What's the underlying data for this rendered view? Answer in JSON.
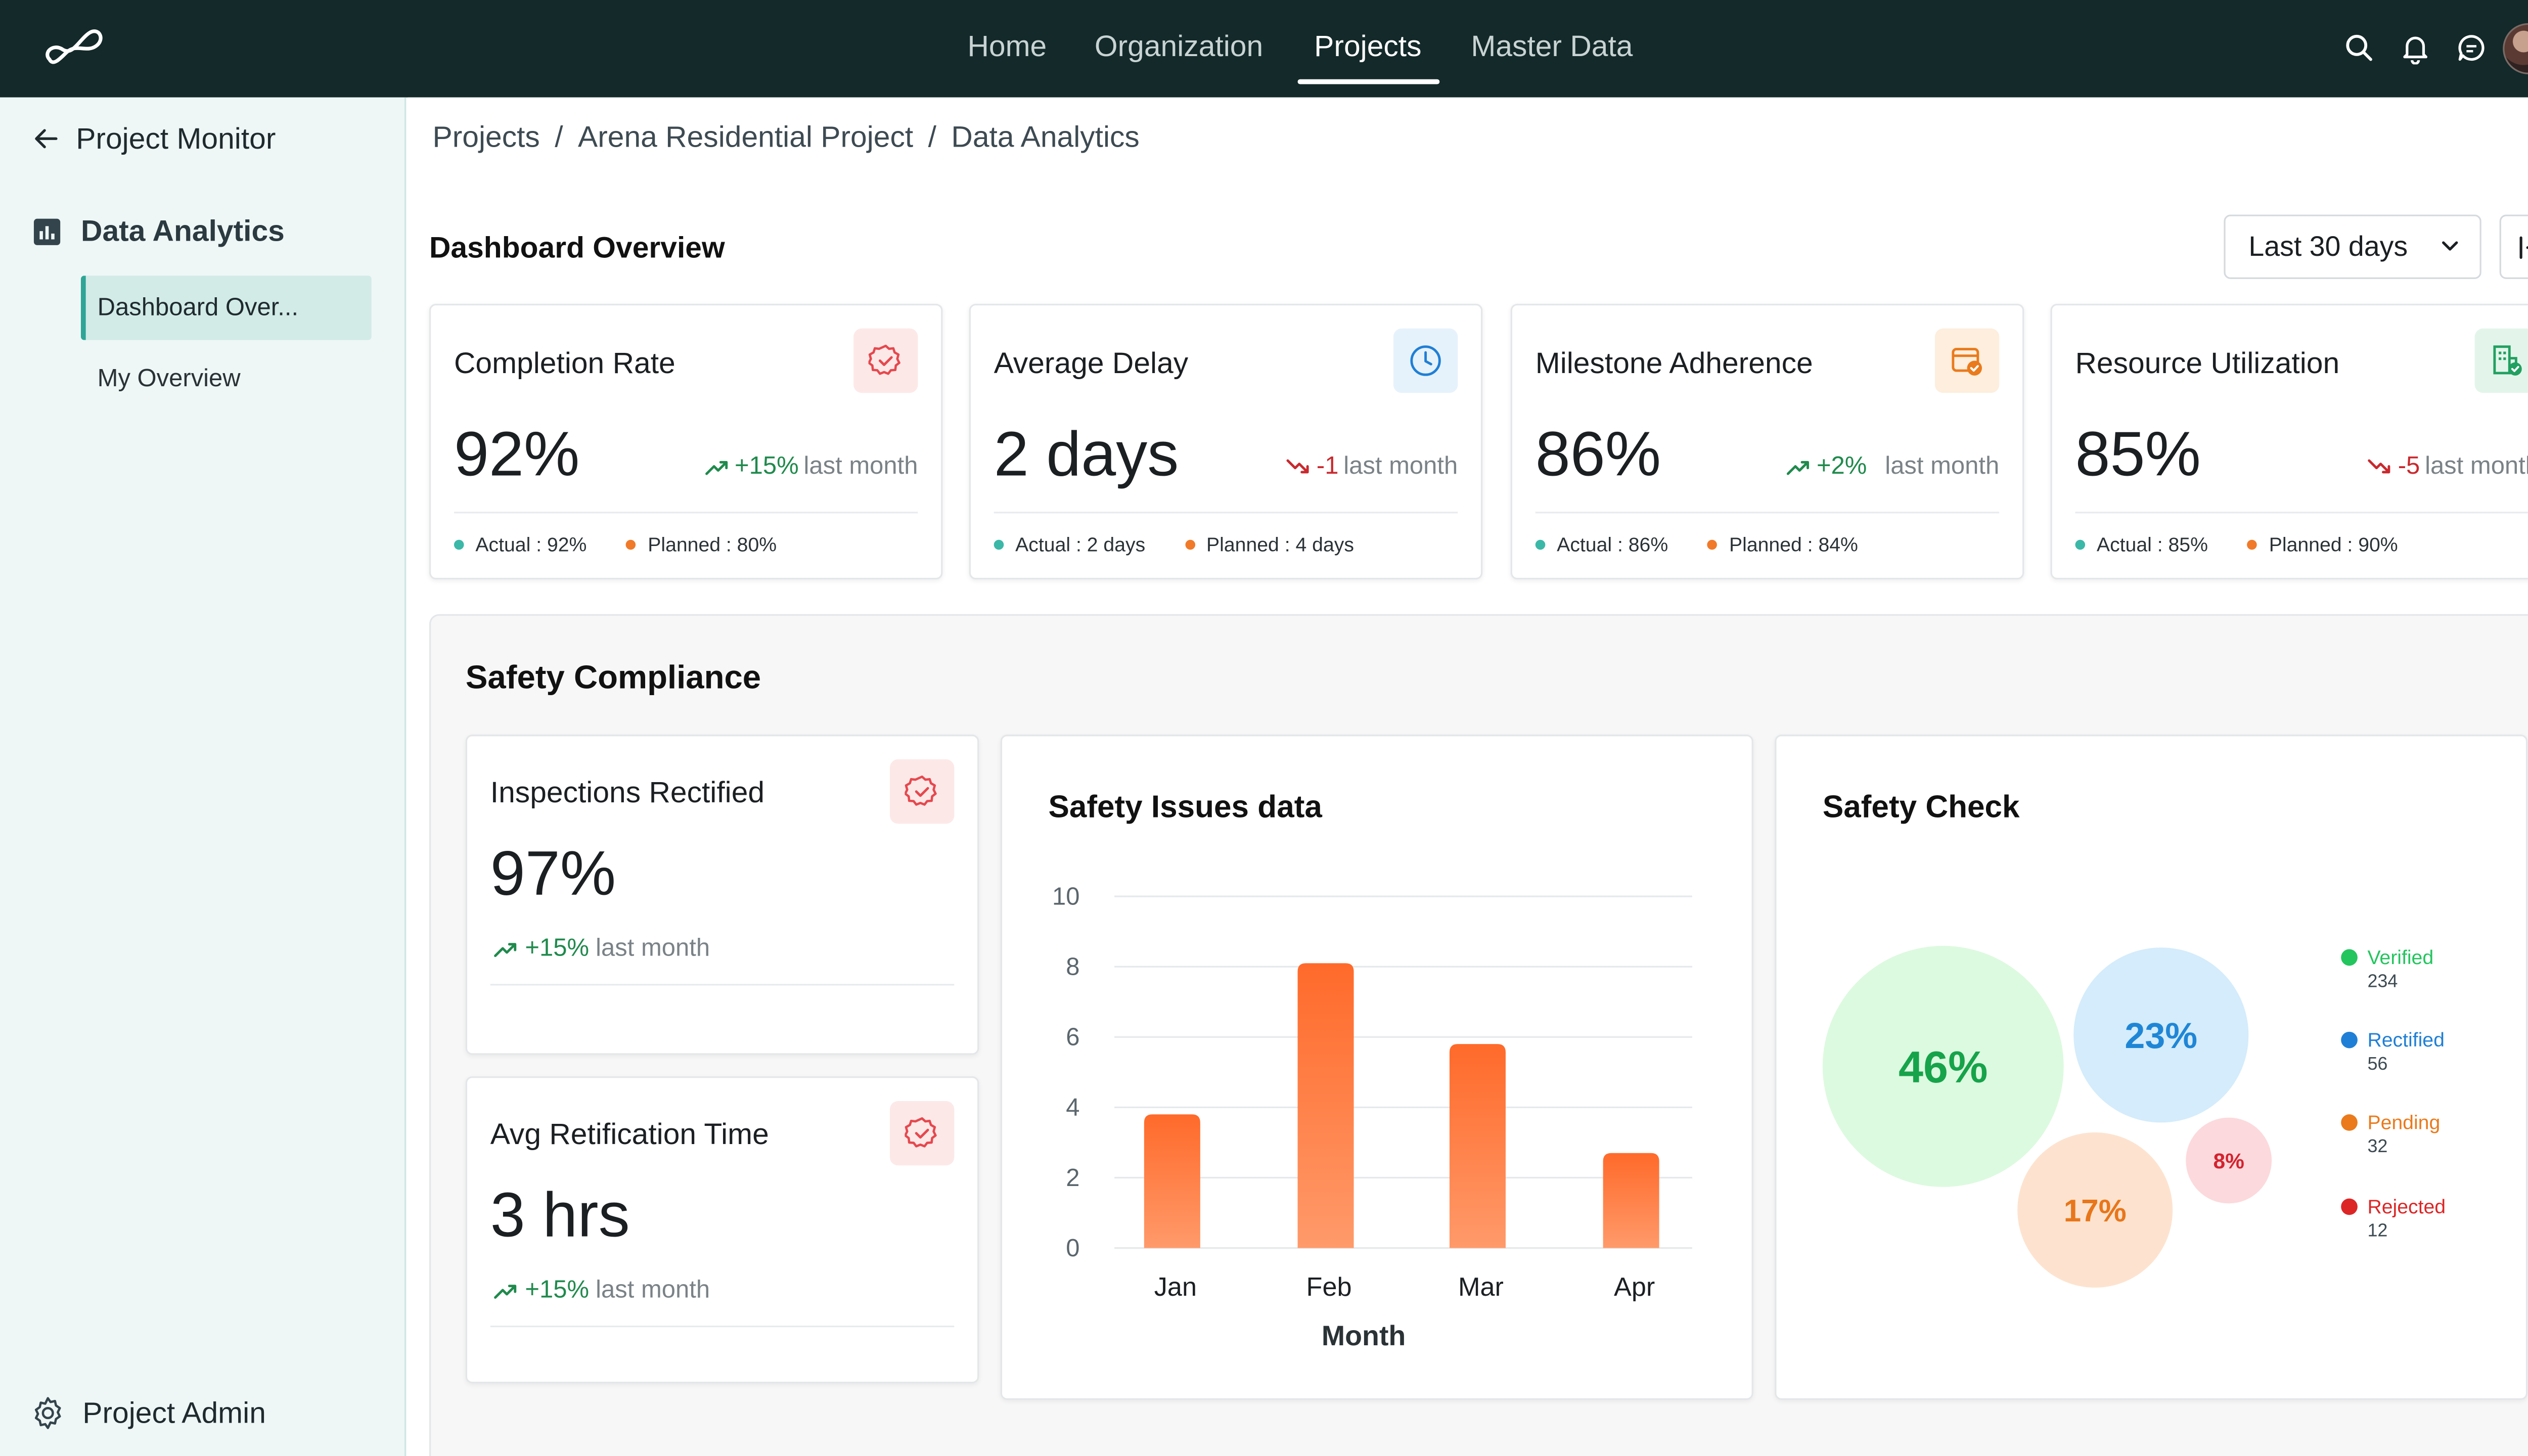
{
  "nav": {
    "items": [
      "Home",
      "Organization",
      "Projects",
      "Master Data"
    ],
    "active": "Projects"
  },
  "topbar_icons": [
    "search-icon",
    "bell-icon",
    "chat-icon",
    "avatar"
  ],
  "sidebar": {
    "back_label": "Project Monitor",
    "section_label": "Data Analytics",
    "items": [
      {
        "label": "Dashboard Over...",
        "active": true
      },
      {
        "label": "My Overview",
        "active": false
      }
    ],
    "admin_label": "Project Admin"
  },
  "breadcrumb": [
    "Projects",
    "Arena Residential Project",
    "Data Analytics"
  ],
  "breadcrumb_sep": "/",
  "dashboard": {
    "title": "Dashboard Overview",
    "range": "Last 30 days"
  },
  "kpis": [
    {
      "title": "Completion Rate",
      "value": "92%",
      "trend": "+15%",
      "trend_dir": "up",
      "trend_suffix": "last month",
      "actual": "Actual : 92%",
      "planned": "Planned : 80%",
      "icon": "badge-check-icon",
      "icon_color": "#e5484d",
      "icon_bg": "#fde8e8"
    },
    {
      "title": "Average Delay",
      "value": "2 days",
      "trend": "-1",
      "trend_dir": "down",
      "trend_suffix": "last month",
      "actual": "Actual : 2 days",
      "planned": "Planned : 4 days",
      "icon": "clock-icon",
      "icon_color": "#1f7fd6",
      "icon_bg": "#e6f2fb"
    },
    {
      "title": "Milestone Adherence",
      "value": "86%",
      "trend": "+2%",
      "trend_dir": "up",
      "trend_suffix": "last month",
      "actual": "Actual : 86%",
      "planned": "Planned : 84%",
      "icon": "calendar-check-icon",
      "icon_color": "#ea7a1c",
      "icon_bg": "#fdeedd"
    },
    {
      "title": "Resource Utilization",
      "value": "85%",
      "trend": "-5",
      "trend_dir": "down",
      "trend_suffix": "last month",
      "actual": "Actual : 85%",
      "planned": "Planned : 90%",
      "icon": "building-check-icon",
      "icon_color": "#22a061",
      "icon_bg": "#e3f5ea"
    }
  ],
  "colors": {
    "actual_dot": "#3bb8a8",
    "planned_dot": "#f07a2a",
    "bar_top": "#ff6a2a",
    "bar_bottom": "#ff9a6a"
  },
  "safety": {
    "title": "Safety Compliance",
    "inspections": {
      "title": "Inspections Rectified",
      "value": "97%",
      "trend": "+15%",
      "trend_suffix": "last month"
    },
    "avg_time": {
      "title": "Avg Retification Time",
      "value": "3 hrs",
      "trend": "+15%",
      "trend_suffix": "last month"
    },
    "issues_title": "Safety Issues data",
    "check_title": "Safety Check"
  },
  "chart_data": [
    {
      "type": "bar",
      "title": "Safety Issues data",
      "categories": [
        "Jan",
        "Feb",
        "Mar",
        "Apr"
      ],
      "values": [
        3.8,
        8.1,
        5.8,
        2.7
      ],
      "xlabel": "Month",
      "ylabel": "",
      "ylim": [
        0,
        10
      ],
      "yticks": [
        "0",
        "2",
        "4",
        "6",
        "8",
        "10"
      ],
      "grid": true
    },
    {
      "type": "bubble",
      "title": "Safety Check",
      "series": [
        {
          "name": "Verified",
          "count": "234",
          "percent": "46%",
          "color": "#22c55e",
          "fill": "#dcfadf",
          "text_color": "#16a34a"
        },
        {
          "name": "Rectified",
          "count": "56",
          "percent": "23%",
          "color": "#1f7fd6",
          "fill": "#d4ecfb",
          "text_color": "#1f86d6"
        },
        {
          "name": "Pending",
          "count": "32",
          "percent": "17%",
          "color": "#ea7a1c",
          "fill": "#fde3cf",
          "text_color": "#e8761a"
        },
        {
          "name": "Rejected",
          "count": "12",
          "percent": "8%",
          "color": "#dc2626",
          "fill": "#fcd9dc",
          "text_color": "#d3232f"
        }
      ]
    }
  ]
}
